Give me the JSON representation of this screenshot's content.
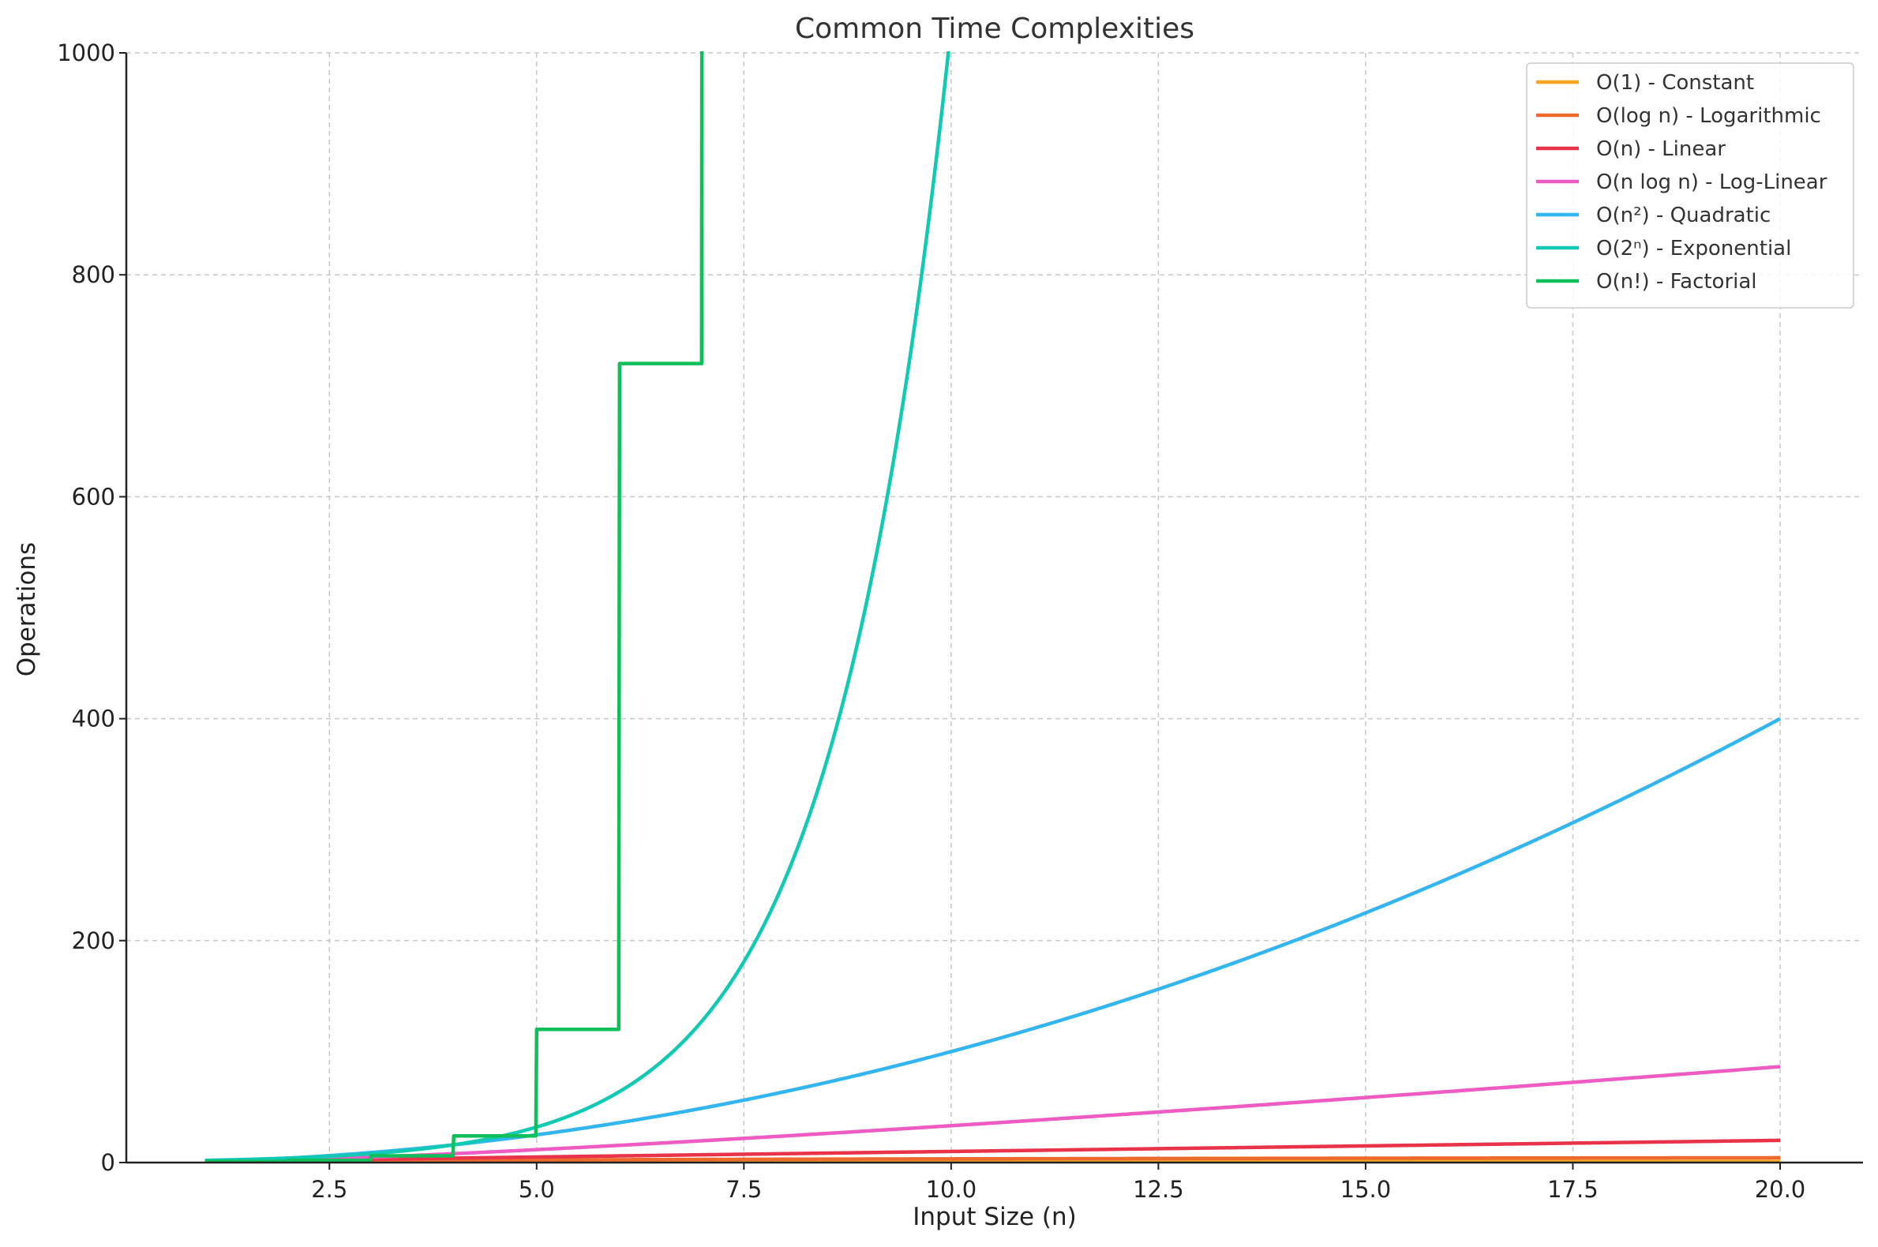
{
  "chart_data": {
    "type": "line",
    "title": "Common Time Complexities",
    "xlabel": "Input Size (n)",
    "ylabel": "Operations",
    "xlim": [
      0.05,
      21
    ],
    "ylim": [
      0,
      1000
    ],
    "xticks": [
      "2.5",
      "5.0",
      "7.5",
      "10.0",
      "12.5",
      "15.0",
      "17.5",
      "20.0"
    ],
    "xtick_values": [
      2.5,
      5.0,
      7.5,
      10.0,
      12.5,
      15.0,
      17.5,
      20.0
    ],
    "yticks": [
      "0",
      "200",
      "400",
      "600",
      "800",
      "1000"
    ],
    "ytick_values": [
      0,
      200,
      400,
      600,
      800,
      1000
    ],
    "grid": true,
    "legend_position": "top-right",
    "series": [
      {
        "name": "O(1) - Constant",
        "color": "#f5a623",
        "formula": "1",
        "x_range": [
          1,
          20
        ]
      },
      {
        "name": "O(log n) - Logarithmic",
        "color": "#ee6a2c",
        "formula": "log2(n)",
        "x_range": [
          1,
          20
        ]
      },
      {
        "name": "O(n) - Linear",
        "color": "#e8334a",
        "formula": "n",
        "x_range": [
          1,
          20
        ]
      },
      {
        "name": "O(n log n) - Log-Linear",
        "color": "#ee5bc2",
        "formula": "n*log2(n)",
        "x_range": [
          1,
          20
        ]
      },
      {
        "name": "O(n²) - Quadratic",
        "color": "#33b6f0",
        "formula": "n^2",
        "x_range": [
          1,
          20
        ]
      },
      {
        "name": "O(2ⁿ) - Exponential",
        "color": "#12c9b4",
        "formula": "2^n",
        "x_range": [
          1,
          10
        ]
      },
      {
        "name": "O(n!) - Factorial",
        "color": "#0fbf5a",
        "formula": "floor(n)!",
        "x_range": [
          1,
          7
        ]
      }
    ]
  }
}
